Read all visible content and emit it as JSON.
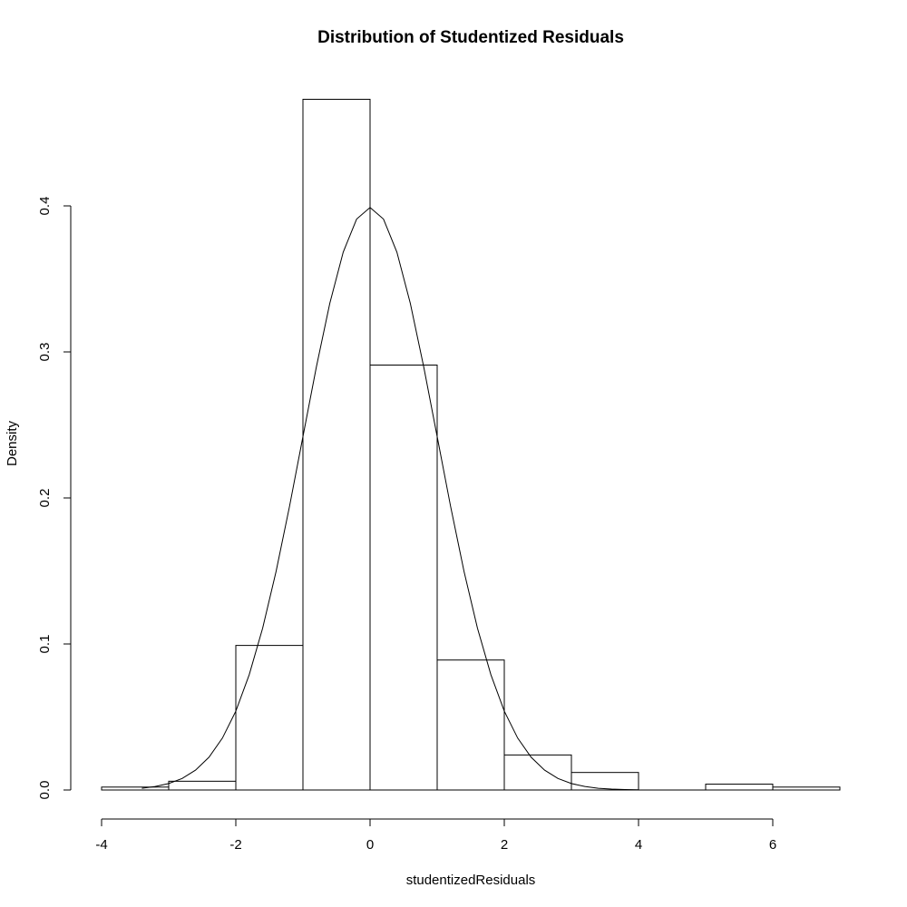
{
  "chart_data": {
    "type": "bar",
    "title": "Distribution of Studentized Residuals",
    "xlabel": "studentizedResiduals",
    "ylabel": "Density",
    "xlim": [
      -4,
      7
    ],
    "ylim": [
      0,
      0.4
    ],
    "x_ticks": [
      -4,
      -2,
      0,
      2,
      4,
      6
    ],
    "x_tick_labels": [
      "-4",
      "-2",
      "0",
      "2",
      "4",
      "6"
    ],
    "y_ticks": [
      0,
      0.1,
      0.2,
      0.3,
      0.4
    ],
    "y_tick_labels": [
      "0.0",
      "0.1",
      "0.2",
      "0.3",
      "0.4"
    ],
    "grid": false,
    "bins": [
      {
        "start": -4,
        "end": -3,
        "density": 0.002
      },
      {
        "start": -3,
        "end": -2,
        "density": 0.006
      },
      {
        "start": -2,
        "end": -1,
        "density": 0.099
      },
      {
        "start": -1,
        "end": 0,
        "density": 0.473
      },
      {
        "start": 0,
        "end": 1,
        "density": 0.291
      },
      {
        "start": 1,
        "end": 2,
        "density": 0.089
      },
      {
        "start": 2,
        "end": 3,
        "density": 0.024
      },
      {
        "start": 3,
        "end": 4,
        "density": 0.012
      },
      {
        "start": 4,
        "end": 5,
        "density": 0.0
      },
      {
        "start": 5,
        "end": 6,
        "density": 0.004
      },
      {
        "start": 6,
        "end": 7,
        "density": 0.002
      }
    ],
    "density_curve": {
      "x": [
        -3.4,
        -3.2,
        -3.0,
        -2.8,
        -2.6,
        -2.4,
        -2.2,
        -2.0,
        -1.8,
        -1.6,
        -1.4,
        -1.2,
        -1.0,
        -0.8,
        -0.6,
        -0.4,
        -0.2,
        0.0,
        0.2,
        0.4,
        0.6,
        0.8,
        1.0,
        1.2,
        1.4,
        1.6,
        1.8,
        2.0,
        2.2,
        2.4,
        2.6,
        2.8,
        3.0,
        3.2,
        3.4,
        3.6,
        3.8,
        4.0
      ],
      "y": [
        0.0012,
        0.0024,
        0.0044,
        0.0079,
        0.0136,
        0.0224,
        0.0355,
        0.054,
        0.079,
        0.1109,
        0.1497,
        0.1942,
        0.242,
        0.2897,
        0.3332,
        0.3683,
        0.391,
        0.3989,
        0.391,
        0.3683,
        0.3332,
        0.2897,
        0.242,
        0.1942,
        0.1497,
        0.1109,
        0.079,
        0.054,
        0.0355,
        0.0224,
        0.0136,
        0.0079,
        0.0044,
        0.0024,
        0.0012,
        0.0006,
        0.0003,
        0.0001
      ]
    }
  }
}
